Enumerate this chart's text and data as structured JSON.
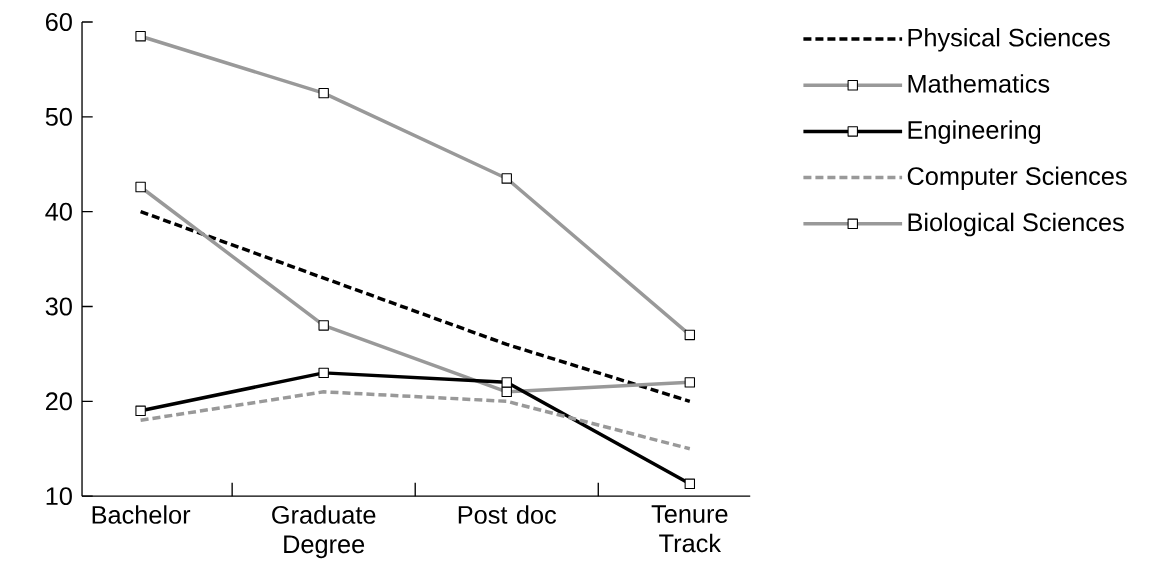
{
  "chart_data": {
    "type": "line",
    "categories": [
      "Bachelor",
      "Graduate Degree",
      "Post doc",
      "Tenure Track"
    ],
    "series": [
      {
        "name": "Physical Sciences",
        "color": "#000000",
        "values": [
          40,
          33,
          26,
          20
        ],
        "line_style": "dashed",
        "marker": "none"
      },
      {
        "name": "Mathematics",
        "color": "#999999",
        "values": [
          42.6,
          28,
          21,
          22
        ],
        "line_style": "solid",
        "marker": "square"
      },
      {
        "name": "Engineering",
        "color": "#000000",
        "values": [
          19,
          23,
          22,
          11.3
        ],
        "line_style": "solid",
        "marker": "square"
      },
      {
        "name": "Computer Sciences",
        "color": "#999999",
        "values": [
          18,
          21,
          20,
          15
        ],
        "line_style": "dashed",
        "marker": "none"
      },
      {
        "name": "Biological Sciences",
        "color": "#999999",
        "values": [
          58.5,
          52.5,
          43.5,
          27
        ],
        "line_style": "solid",
        "marker": "square"
      }
    ],
    "ylim": [
      10,
      60
    ],
    "yticks": [
      10,
      20,
      30,
      40,
      50,
      60
    ],
    "grid": false,
    "legend": "right"
  }
}
